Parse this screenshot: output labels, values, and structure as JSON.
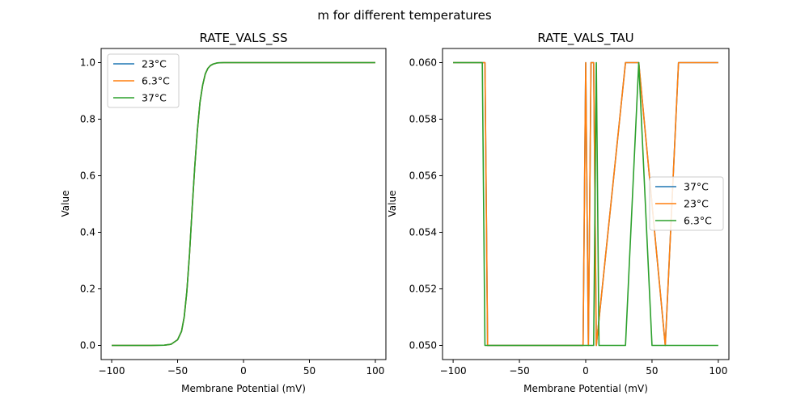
{
  "figure": {
    "title": "m for different temperatures"
  },
  "chart_data": [
    {
      "type": "line",
      "title": "RATE_VALS_SS",
      "xlabel": "Membrane Potential (mV)",
      "ylabel": "Value",
      "xlim": [
        -108,
        108
      ],
      "ylim": [
        -0.05,
        1.05
      ],
      "xticks": [
        -100,
        -50,
        0,
        50,
        100
      ],
      "xtick_labels": [
        "−100",
        "−50",
        "0",
        "50",
        "100"
      ],
      "yticks": [
        0.0,
        0.2,
        0.4,
        0.6,
        0.8,
        1.0
      ],
      "ytick_labels": [
        "0.0",
        "0.2",
        "0.4",
        "0.6",
        "0.8",
        "1.0"
      ],
      "grid": false,
      "legend_position": "upper-left",
      "x": [
        -100,
        -90,
        -80,
        -70,
        -60,
        -55,
        -50,
        -47,
        -45,
        -43,
        -41,
        -39,
        -37,
        -35,
        -33,
        -31,
        -29,
        -27,
        -25,
        -23,
        -20,
        -15,
        -10,
        0,
        10,
        20,
        30,
        40,
        50,
        60,
        70,
        80,
        90,
        100
      ],
      "series": [
        {
          "name": "23°C",
          "color": "#1f77b4",
          "values": [
            0,
            0,
            0,
            0,
            0.001,
            0.004,
            0.02,
            0.05,
            0.1,
            0.19,
            0.32,
            0.48,
            0.63,
            0.76,
            0.86,
            0.92,
            0.96,
            0.98,
            0.99,
            0.995,
            0.999,
            1,
            1,
            1,
            1,
            1,
            1,
            1,
            1,
            1,
            1,
            1,
            1,
            1
          ]
        },
        {
          "name": "6.3°C",
          "color": "#ff7f0e",
          "values": [
            0,
            0,
            0,
            0,
            0.001,
            0.004,
            0.02,
            0.05,
            0.1,
            0.19,
            0.32,
            0.48,
            0.63,
            0.76,
            0.86,
            0.92,
            0.96,
            0.98,
            0.99,
            0.995,
            0.999,
            1,
            1,
            1,
            1,
            1,
            1,
            1,
            1,
            1,
            1,
            1,
            1,
            1
          ]
        },
        {
          "name": "37°C",
          "color": "#2ca02c",
          "values": [
            0,
            0,
            0,
            0,
            0.001,
            0.004,
            0.02,
            0.05,
            0.1,
            0.19,
            0.32,
            0.48,
            0.63,
            0.76,
            0.86,
            0.92,
            0.96,
            0.98,
            0.99,
            0.995,
            0.999,
            1,
            1,
            1,
            1,
            1,
            1,
            1,
            1,
            1,
            1,
            1,
            1,
            1
          ]
        }
      ]
    },
    {
      "type": "line",
      "title": "RATE_VALS_TAU",
      "xlabel": "Membrane Potential (mV)",
      "ylabel": "Value",
      "xlim": [
        -108,
        108
      ],
      "ylim": [
        0.0495,
        0.0605
      ],
      "xticks": [
        -100,
        -50,
        0,
        50,
        100
      ],
      "xtick_labels": [
        "−100",
        "−50",
        "0",
        "50",
        "100"
      ],
      "yticks": [
        0.05,
        0.052,
        0.054,
        0.056,
        0.058,
        0.06
      ],
      "ytick_labels": [
        "0.050",
        "0.052",
        "0.054",
        "0.056",
        "0.058",
        "0.060"
      ],
      "grid": false,
      "legend_position": "center-right",
      "series": [
        {
          "name": "37°C",
          "color": "#1f77b4",
          "x": [
            -100,
            -76,
            -74,
            -2,
            0,
            2,
            4,
            6,
            8,
            30,
            32,
            40,
            60,
            70,
            100
          ],
          "values": [
            0.06,
            0.06,
            0.05,
            0.05,
            0.06,
            0.05,
            0.06,
            0.06,
            0.05,
            0.06,
            0.06,
            0.06,
            0.05,
            0.06,
            0.06
          ]
        },
        {
          "name": "23°C",
          "color": "#ff7f0e",
          "x": [
            -100,
            -76,
            -74,
            -2,
            0,
            2,
            4,
            6,
            8,
            30,
            32,
            40,
            60,
            70,
            100
          ],
          "values": [
            0.06,
            0.06,
            0.05,
            0.05,
            0.06,
            0.05,
            0.06,
            0.06,
            0.05,
            0.06,
            0.06,
            0.06,
            0.05,
            0.06,
            0.06
          ]
        },
        {
          "name": "6.3°C",
          "color": "#2ca02c",
          "x": [
            -100,
            -78,
            -76,
            6,
            8,
            10,
            20,
            30,
            40,
            50,
            100
          ],
          "values": [
            0.06,
            0.06,
            0.05,
            0.05,
            0.06,
            0.05,
            0.05,
            0.05,
            0.06,
            0.05,
            0.05
          ]
        }
      ]
    }
  ]
}
